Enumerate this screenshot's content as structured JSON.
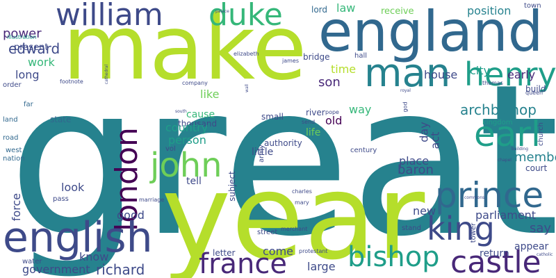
{
  "palette": {
    "lime": "#b5de2b",
    "green": "#6ece58",
    "teal_green": "#1f9e89",
    "teal": "#26828e",
    "steel": "#31688e",
    "indigo": "#3e4a89",
    "deep": "#482878",
    "dark": "#440154"
  },
  "words": [
    {
      "text": "great",
      "color": "#26828e"
    },
    {
      "text": "year",
      "color": "#b5de2b"
    },
    {
      "text": "make",
      "color": "#b5de2b"
    },
    {
      "text": "england",
      "color": "#31688e"
    },
    {
      "text": "william",
      "color": "#3e4a89"
    },
    {
      "text": "duke",
      "color": "#35b779"
    },
    {
      "text": "man",
      "color": "#26828e"
    },
    {
      "text": "henry",
      "color": "#1f9e89"
    },
    {
      "text": "earl",
      "color": "#1f9e89"
    },
    {
      "text": "john",
      "color": "#6ece58"
    },
    {
      "text": "london",
      "color": "#440154"
    },
    {
      "text": "prince",
      "color": "#31688e"
    },
    {
      "text": "king",
      "color": "#3e4a89"
    },
    {
      "text": "english",
      "color": "#3e4a89"
    },
    {
      "text": "france",
      "color": "#482878"
    },
    {
      "text": "bishop",
      "color": "#1f9e89"
    },
    {
      "text": "castle",
      "color": "#482878"
    },
    {
      "text": "edward",
      "color": "#3e4a89"
    },
    {
      "text": "power",
      "color": "#482878"
    },
    {
      "text": "present",
      "color": "#3e4a89"
    },
    {
      "text": "work",
      "color": "#35b779"
    },
    {
      "text": "long",
      "color": "#3e4a89"
    },
    {
      "text": "law",
      "color": "#35b779"
    },
    {
      "text": "receive",
      "color": "#6ece58"
    },
    {
      "text": "position",
      "color": "#26828e"
    },
    {
      "text": "lord",
      "color": "#31688e"
    },
    {
      "text": "town",
      "color": "#3e4a89"
    },
    {
      "text": "far",
      "color": "#31688e"
    },
    {
      "text": "illustration",
      "color": "#1f9e89"
    },
    {
      "text": "time",
      "color": "#b5de2b"
    },
    {
      "text": "city",
      "color": "#1f9e89"
    },
    {
      "text": "early",
      "color": "#482878"
    },
    {
      "text": "house",
      "color": "#3e4a89"
    },
    {
      "text": "son",
      "color": "#482878"
    },
    {
      "text": "archbishop",
      "color": "#26828e"
    },
    {
      "text": "like",
      "color": "#6ece58"
    },
    {
      "text": "cause",
      "color": "#35b779"
    },
    {
      "text": "thousand",
      "color": "#3e4a89"
    },
    {
      "text": "way",
      "color": "#35b779"
    },
    {
      "text": "old",
      "color": "#440154"
    },
    {
      "text": "country",
      "color": "#1f9e89"
    },
    {
      "text": "person",
      "color": "#1f9e89"
    },
    {
      "text": "life",
      "color": "#6ece58"
    },
    {
      "text": "day",
      "color": "#3e4a89"
    },
    {
      "text": "act",
      "color": "#3e4a89"
    },
    {
      "text": "member",
      "color": "#26828e"
    },
    {
      "text": "place",
      "color": "#3e4a89"
    },
    {
      "text": "baron",
      "color": "#3e4a89"
    },
    {
      "text": "little",
      "color": "#3e4a89"
    },
    {
      "text": "authority",
      "color": "#3e4a89"
    },
    {
      "text": "state",
      "color": "#31688e"
    },
    {
      "text": "road",
      "color": "#31688e"
    },
    {
      "text": "west",
      "color": "#31688e"
    },
    {
      "text": "nation",
      "color": "#31688e"
    },
    {
      "text": "land",
      "color": "#31688e"
    },
    {
      "text": "order",
      "color": "#3e4a89"
    },
    {
      "text": "small",
      "color": "#3e4a89"
    },
    {
      "text": "river",
      "color": "#3e4a89"
    },
    {
      "text": "kingdom",
      "color": "#1f9e89"
    },
    {
      "text": "church",
      "color": "#3e4a89"
    },
    {
      "text": "court",
      "color": "#3e4a89"
    },
    {
      "text": "tell",
      "color": "#3e4a89"
    },
    {
      "text": "look",
      "color": "#3e4a89"
    },
    {
      "text": "force",
      "color": "#3e4a89"
    },
    {
      "text": "good",
      "color": "#3e4a89"
    },
    {
      "text": "new",
      "color": "#3e4a89"
    },
    {
      "text": "parliament",
      "color": "#3e4a89"
    },
    {
      "text": "say",
      "color": "#3e4a89"
    },
    {
      "text": "come",
      "color": "#3e4a89"
    },
    {
      "text": "large",
      "color": "#3e4a89"
    },
    {
      "text": "know",
      "color": "#3e4a89"
    },
    {
      "text": "richard",
      "color": "#3e4a89"
    },
    {
      "text": "government",
      "color": "#3e4a89"
    },
    {
      "text": "water",
      "color": "#3e4a89"
    },
    {
      "text": "letter",
      "color": "#3e4a89"
    },
    {
      "text": "return",
      "color": "#3e4a89"
    },
    {
      "text": "appear",
      "color": "#3e4a89"
    },
    {
      "text": "stand",
      "color": "#3e4a89"
    },
    {
      "text": "street",
      "color": "#3e4a89"
    },
    {
      "text": "merchant",
      "color": "#3e4a89"
    },
    {
      "text": "subject",
      "color": "#3e4a89"
    },
    {
      "text": "army",
      "color": "#3e4a89"
    },
    {
      "text": "vol",
      "color": "#3e4a89"
    },
    {
      "text": "century",
      "color": "#3e4a89"
    },
    {
      "text": "bridge",
      "color": "#3e4a89"
    },
    {
      "text": "hall",
      "color": "#3e4a89"
    },
    {
      "text": "james",
      "color": "#3e4a89"
    },
    {
      "text": "build",
      "color": "#3e4a89"
    },
    {
      "text": "thomas",
      "color": "#3e4a89"
    },
    {
      "text": "queen",
      "color": "#3e4a89"
    },
    {
      "text": "pope",
      "color": "#3e4a89"
    },
    {
      "text": "send",
      "color": "#3e4a89"
    },
    {
      "text": "god",
      "color": "#3e4a89"
    },
    {
      "text": "footnote",
      "color": "#3e4a89"
    },
    {
      "text": "elizabeth",
      "color": "#3e4a89"
    },
    {
      "text": "company",
      "color": "#3e4a89"
    },
    {
      "text": "pass",
      "color": "#3e4a89"
    },
    {
      "text": "marriage",
      "color": "#3e4a89"
    },
    {
      "text": "charles",
      "color": "#3e4a89"
    },
    {
      "text": "mary",
      "color": "#3e4a89"
    },
    {
      "text": "protestant",
      "color": "#3e4a89"
    },
    {
      "text": "commons",
      "color": "#3e4a89"
    },
    {
      "text": "tower",
      "color": "#3e4a89"
    },
    {
      "text": "catholic",
      "color": "#3e4a89"
    },
    {
      "text": "palace",
      "color": "#3e4a89"
    },
    {
      "text": "wall",
      "color": "#3e4a89"
    },
    {
      "text": "cathedral",
      "color": "#3e4a89"
    },
    {
      "text": "royal",
      "color": "#3e4a89"
    },
    {
      "text": "south",
      "color": "#3e4a89"
    },
    {
      "text": "building",
      "color": "#3e4a89"
    },
    {
      "text": "chapel",
      "color": "#3e4a89"
    }
  ]
}
